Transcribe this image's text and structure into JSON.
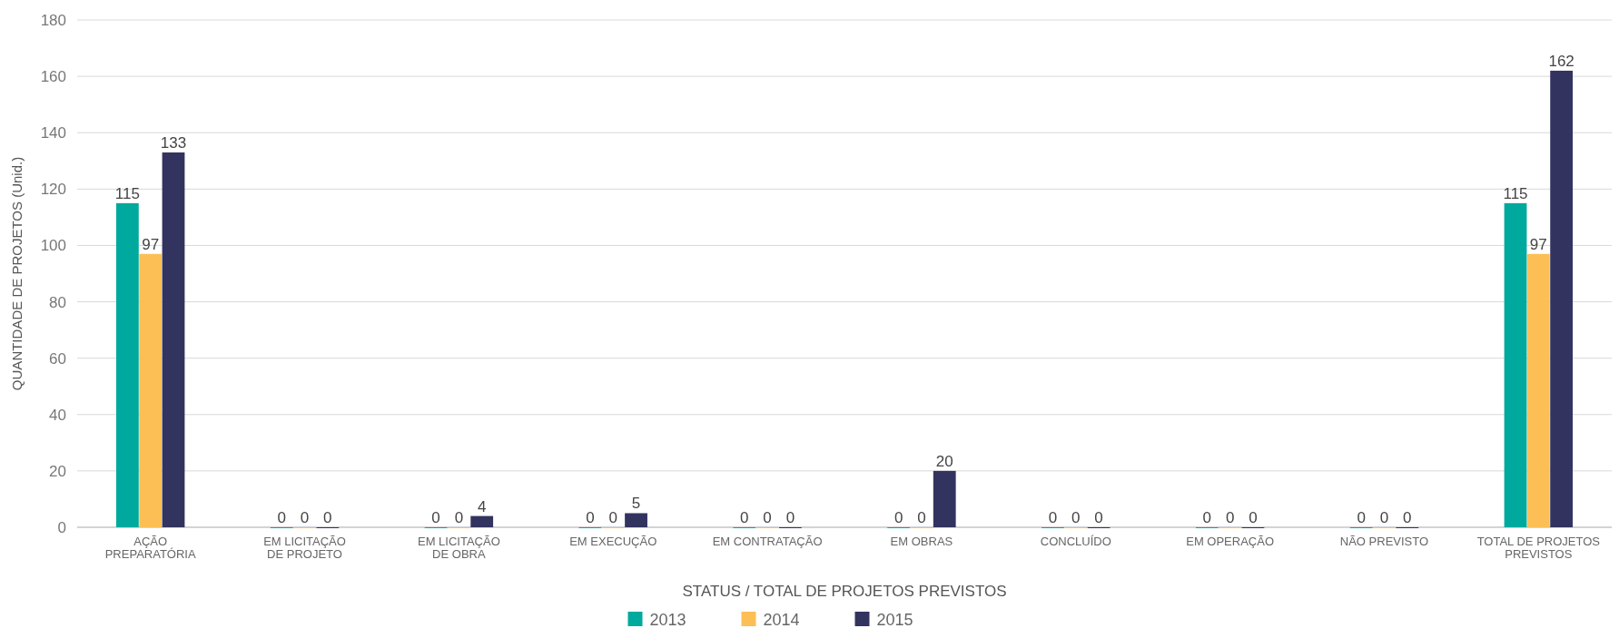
{
  "chart_data": {
    "type": "bar",
    "xlabel": "STATUS / TOTAL DE PROJETOS PREVISTOS",
    "ylabel": "QUANTIDADE DE PROJETOS   (Unid.)",
    "categories": [
      "AÇÃO\nPREPARATÓRIA",
      "EM LICITAÇÃO\nDE PROJETO",
      "EM LICITAÇÃO\nDE OBRA",
      "EM EXECUÇÃO",
      "EM CONTRATAÇÃO",
      "EM OBRAS",
      "CONCLUÍDO",
      "EM OPERAÇÃO",
      "NÃO PREVISTO",
      "TOTAL DE PROJETOS\nPREVISTOS"
    ],
    "series": [
      {
        "name": "2013",
        "color": "#00a99d",
        "values": [
          115,
          0,
          0,
          0,
          0,
          0,
          0,
          0,
          0,
          115
        ]
      },
      {
        "name": "2014",
        "color": "#fbbf56",
        "values": [
          97,
          0,
          0,
          0,
          0,
          0,
          0,
          0,
          0,
          97
        ]
      },
      {
        "name": "2015",
        "color": "#333360",
        "values": [
          133,
          0,
          4,
          5,
          0,
          20,
          0,
          0,
          0,
          162
        ]
      }
    ],
    "ylim": [
      0,
      180
    ],
    "yticks": [
      0,
      20,
      40,
      60,
      80,
      100,
      120,
      140,
      160,
      180
    ],
    "grid": "y",
    "legend": "bottom",
    "data_labels": true
  }
}
